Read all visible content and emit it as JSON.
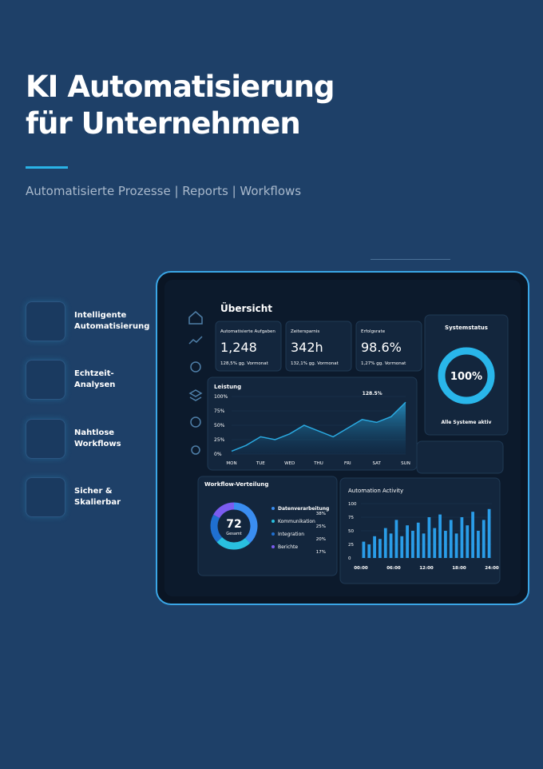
{
  "header": {
    "title_lines": [
      "KI Automatisierung",
      "für Unternehmen"
    ],
    "subtitle": "Automatisierte Prozesse | Reports | Workflows"
  },
  "features": [
    "Intelligente Automatisierung",
    "Echtzeit-Analysen",
    "Nahtlose Workflows",
    "Sicher & Skalierbar"
  ],
  "dashboard": {
    "title": "Übersicht",
    "kpis": [
      {
        "label": "Automatisierte Aufgaben",
        "value": "1,248",
        "change": "128,5% gg. Vormonat"
      },
      {
        "label": "Zeitersparnis",
        "value": "342h",
        "change": "132,1% gg. Vormonat"
      },
      {
        "label": "Erfolgsrate",
        "value": "98.6%",
        "change": "1,27% gg. Vormonat"
      }
    ],
    "system_status": {
      "title": "Systemstatus",
      "percent": 100,
      "percent_label": "100%",
      "note": "Alle Systeme aktiv"
    },
    "performance": {
      "type": "area",
      "title": "Leistung",
      "annotation": "128.5%",
      "x": [
        0,
        0.5,
        1,
        1.5,
        2,
        2.5,
        3,
        3.5,
        4,
        4.5,
        5,
        5.5,
        6
      ],
      "values": [
        5,
        15,
        30,
        25,
        35,
        50,
        40,
        30,
        45,
        60,
        55,
        65,
        90
      ],
      "xlim": [
        0,
        6
      ],
      "ylim": [
        0,
        100
      ],
      "xticks": [
        {
          "value": 0,
          "label": "MON"
        },
        {
          "value": 1,
          "label": "TUE"
        },
        {
          "value": 2,
          "label": "WED"
        },
        {
          "value": 3,
          "label": "THU"
        },
        {
          "value": 4,
          "label": "FRI"
        },
        {
          "value": 5,
          "label": "SAT"
        },
        {
          "value": 6,
          "label": "SUN"
        }
      ],
      "yticks": [
        {
          "value": 0,
          "label": "0%"
        },
        {
          "value": 25,
          "label": "25%"
        },
        {
          "value": 50,
          "label": "50%"
        },
        {
          "value": 75,
          "label": "75%"
        },
        {
          "value": 100,
          "label": "100%"
        }
      ],
      "color": "#2aa9e0"
    },
    "workflow": {
      "type": "pie",
      "title": "Workflow-Verteilung",
      "total": 72,
      "total_label": "Gesamt",
      "categories": [
        "Datenverarbeitung",
        "Kommunikation",
        "Integration",
        "Berichte"
      ],
      "values": [
        38,
        25,
        20,
        17
      ],
      "value_labels": [
        "38%",
        "25%",
        "20%",
        "17%"
      ],
      "colors": [
        "#3a8df0",
        "#29c0e0",
        "#1f6fd0",
        "#7b5cf0"
      ]
    },
    "activity": {
      "type": "bar",
      "title": "Automation Activity",
      "x": [
        0,
        1,
        2,
        3,
        4,
        5,
        6,
        7,
        8,
        9,
        10,
        11,
        12,
        13,
        14,
        15,
        16,
        17,
        18,
        19,
        20,
        21,
        22,
        23
      ],
      "values": [
        30,
        25,
        40,
        35,
        55,
        45,
        70,
        40,
        60,
        50,
        65,
        45,
        75,
        55,
        80,
        50,
        70,
        45,
        75,
        60,
        85,
        50,
        70,
        90
      ],
      "xlim": [
        0,
        24
      ],
      "ylim": [
        0,
        100
      ],
      "xticks": [
        {
          "value": 0,
          "label": "00:00"
        },
        {
          "value": 6,
          "label": "06:00"
        },
        {
          "value": 12,
          "label": "12:00"
        },
        {
          "value": 18,
          "label": "18:00"
        },
        {
          "value": 24,
          "label": "24:00"
        }
      ],
      "yticks": [
        0,
        25,
        50,
        75,
        100
      ],
      "color": "#2a9de8"
    }
  }
}
